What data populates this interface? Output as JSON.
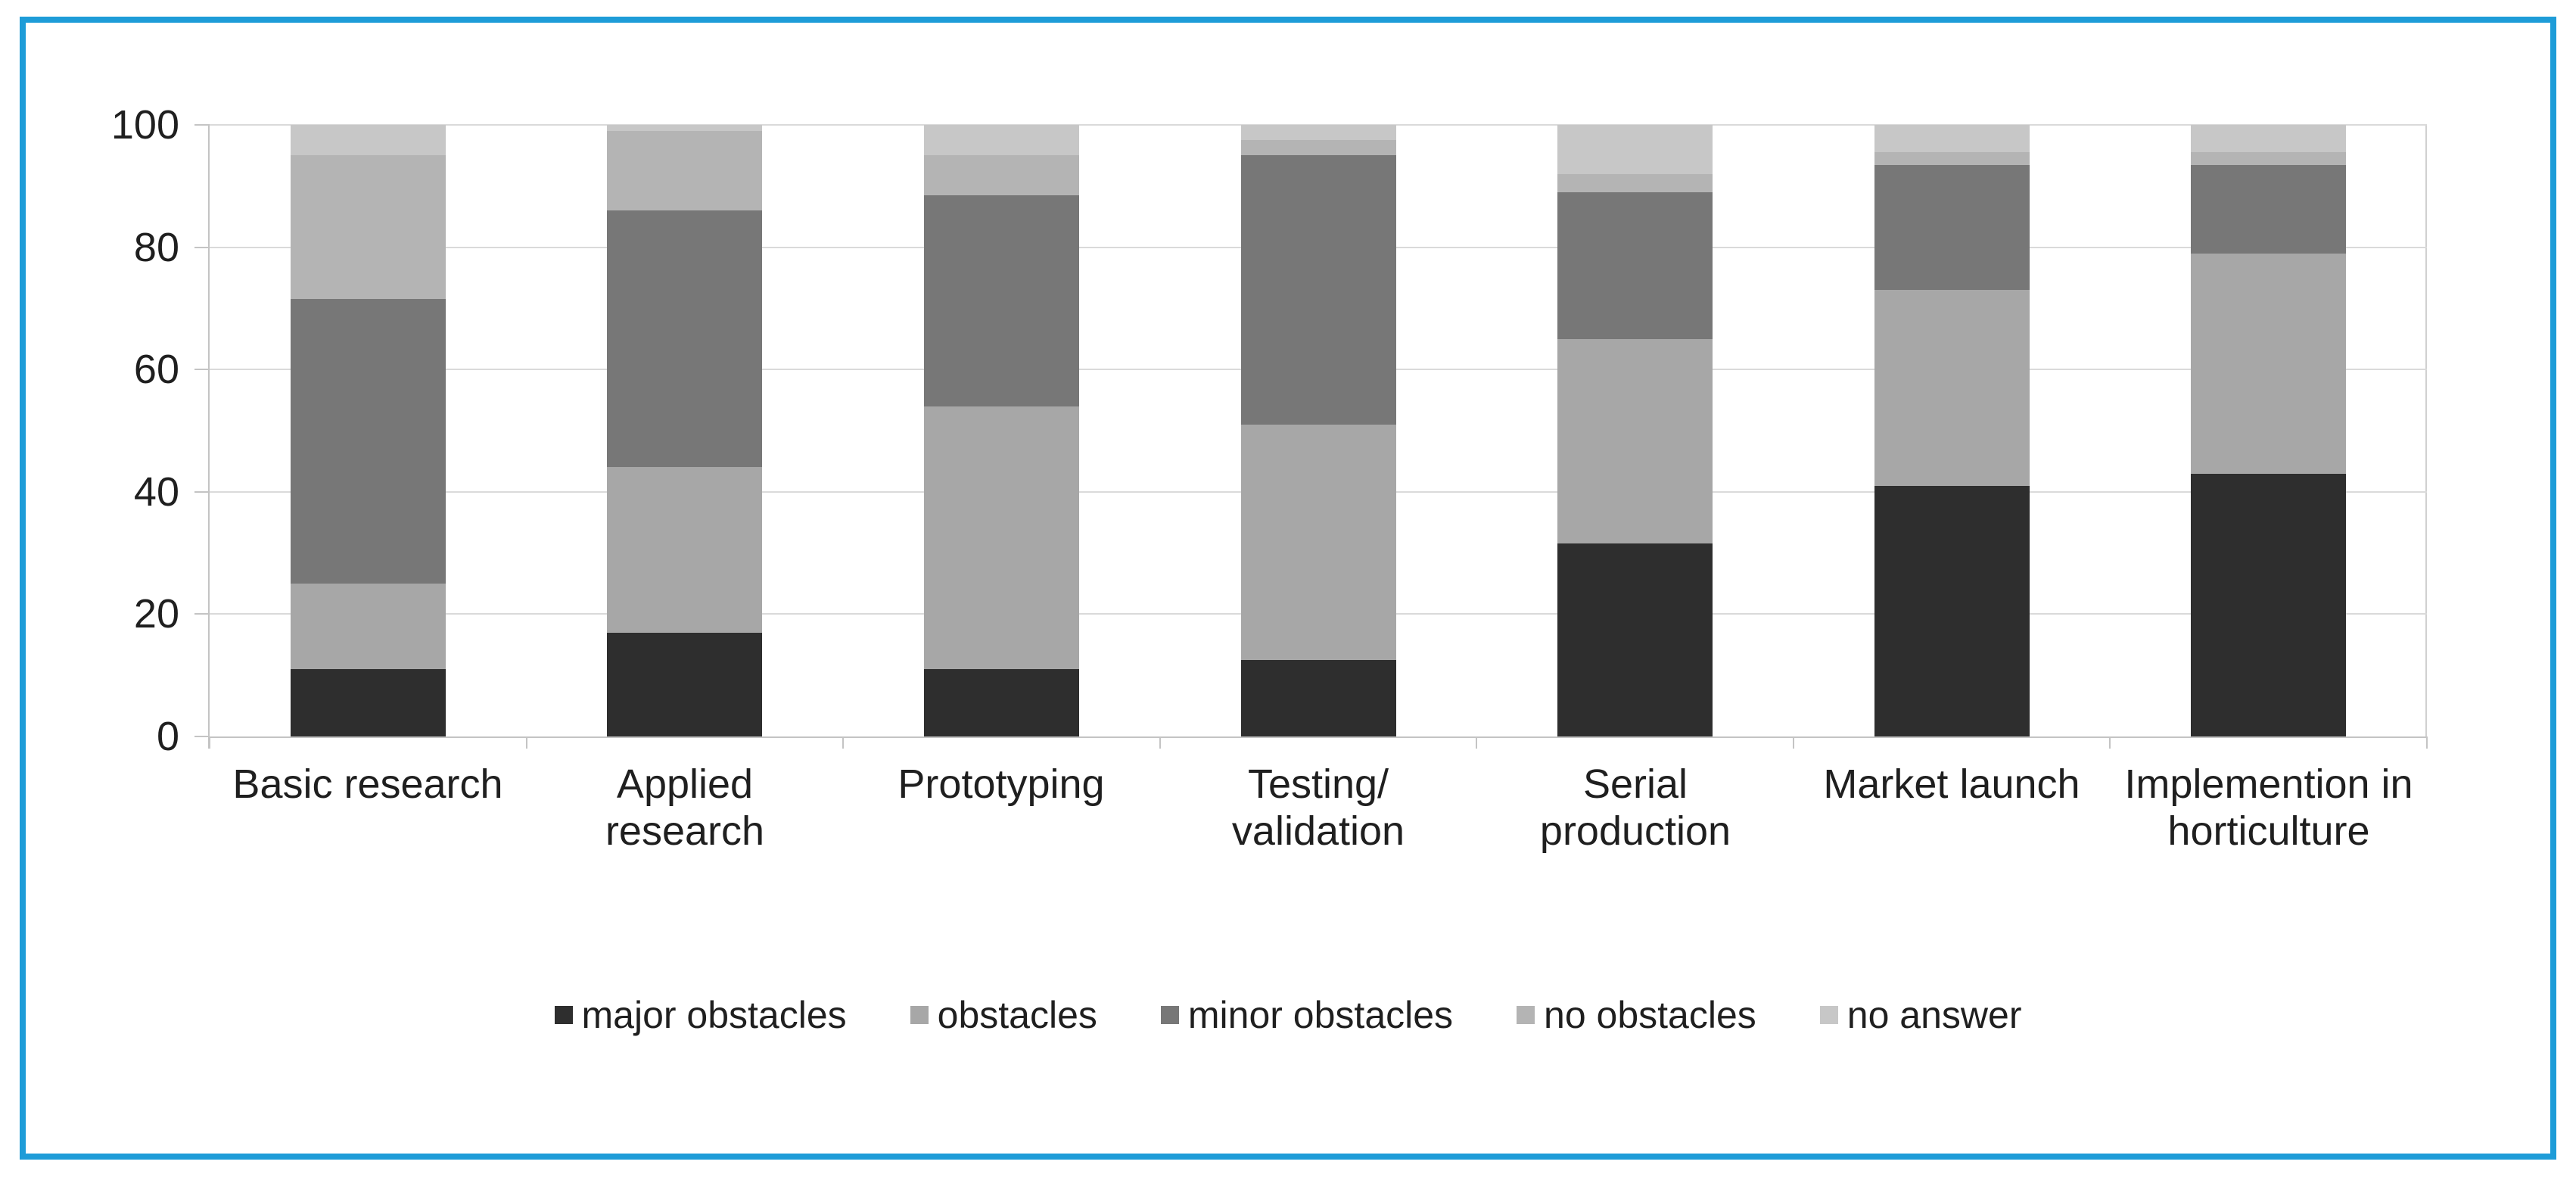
{
  "frame": {
    "border_color": "#1e9cd8",
    "background": "#ffffff"
  },
  "chart_data": {
    "type": "bar",
    "stacked": true,
    "title": "",
    "xlabel": "",
    "ylabel": "",
    "ylim": [
      0,
      100
    ],
    "yticks": [
      0,
      20,
      40,
      60,
      80,
      100
    ],
    "grid": true,
    "legend_position": "bottom",
    "categories": [
      "Basic research",
      "Applied research",
      "Prototyping",
      "Testing/ validation",
      "Serial production",
      "Market launch",
      "Implemention in horticulture"
    ],
    "category_label_lines": [
      [
        "Basic research"
      ],
      [
        "Applied",
        "research"
      ],
      [
        "Prototyping"
      ],
      [
        "Testing/",
        "validation"
      ],
      [
        "Serial",
        "production"
      ],
      [
        "Market launch"
      ],
      [
        "Implemention in",
        "horticulture"
      ]
    ],
    "series": [
      {
        "name": "major obstacles",
        "color": "#2e2e2e",
        "values": [
          11,
          17,
          11,
          12.5,
          31.5,
          41,
          43
        ]
      },
      {
        "name": "obstacles",
        "color": "#a7a7a7",
        "values": [
          14,
          27,
          43,
          38.5,
          33.5,
          32,
          36
        ]
      },
      {
        "name": "minor obstacles",
        "color": "#777777",
        "values": [
          46.5,
          42,
          34.5,
          44,
          24,
          20.5,
          14.5
        ]
      },
      {
        "name": "no obstacles",
        "color": "#b4b4b4",
        "values": [
          23.5,
          13,
          6.5,
          2.5,
          3,
          2,
          2
        ]
      },
      {
        "name": "no answer",
        "color": "#c7c7c7",
        "values": [
          5,
          1,
          5,
          2.5,
          8,
          4.5,
          4.5
        ]
      }
    ]
  },
  "layout_colors": {
    "gridline": "#dadada",
    "axis": "#c4c4c4",
    "text": "#1f1f1f"
  }
}
